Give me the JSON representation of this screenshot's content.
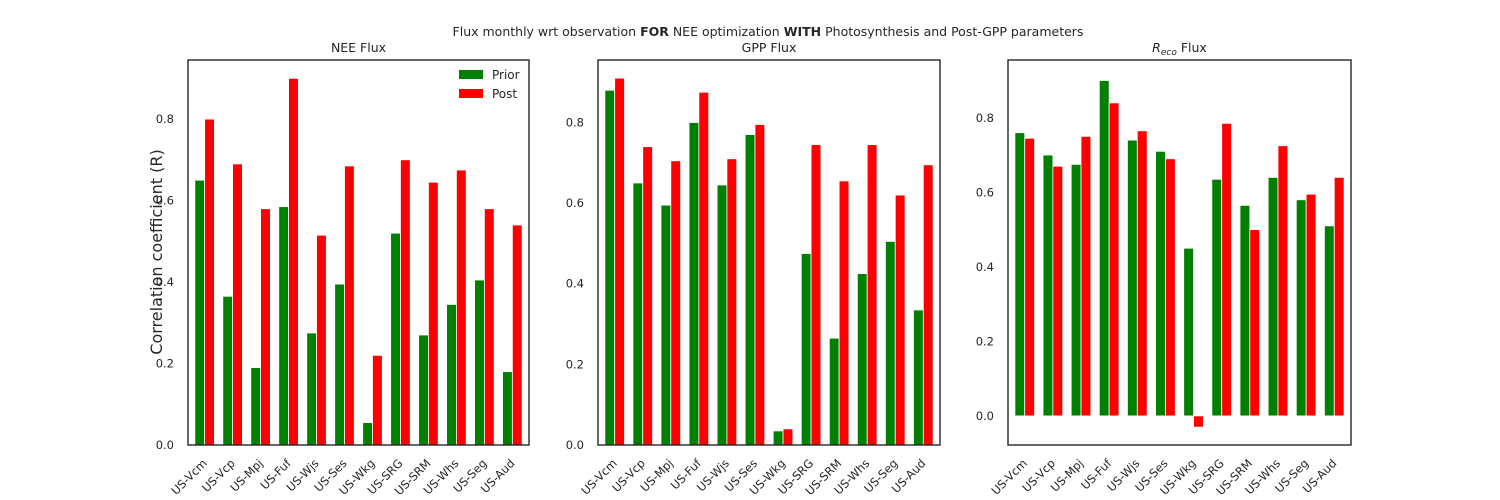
{
  "figure": {
    "title_parts": [
      {
        "text": "Flux monthly wrt observation ",
        "bold": false
      },
      {
        "text": "FOR",
        "bold": true
      },
      {
        "text": " NEE optimization ",
        "bold": false
      },
      {
        "text": "WITH",
        "bold": true
      },
      {
        "text": " Photosynthesis and Post-GPP parameters",
        "bold": false
      }
    ],
    "ylabel": "Correlation coefficient (R)"
  },
  "colors": {
    "prior": "#008000",
    "post": "#ff0000"
  },
  "chart_data": [
    {
      "type": "bar",
      "title": "NEE Flux",
      "categories": [
        "US-Vcm",
        "US-Vcp",
        "US-Mpj",
        "US-Fuf",
        "US-Wjs",
        "US-Ses",
        "US-Wkg",
        "US-SRG",
        "US-SRM",
        "US-Whs",
        "US-Seg",
        "US-Aud"
      ],
      "series": [
        {
          "name": "Prior",
          "values": [
            0.65,
            0.365,
            0.19,
            0.585,
            0.275,
            0.395,
            0.055,
            0.52,
            0.27,
            0.345,
            0.405,
            0.18
          ]
        },
        {
          "name": "Post",
          "values": [
            0.8,
            0.69,
            0.58,
            0.9,
            0.515,
            0.685,
            0.22,
            0.7,
            0.645,
            0.675,
            0.58,
            0.54
          ]
        }
      ],
      "ylim": [
        0.0,
        0.945
      ],
      "yticks": [
        0.0,
        0.2,
        0.4,
        0.6,
        0.8
      ],
      "ytick_labels": [
        "0.0",
        "0.2",
        "0.4",
        "0.6",
        "0.8"
      ],
      "legend": "top-right",
      "grid": false
    },
    {
      "type": "bar",
      "title": "GPP Flux",
      "categories": [
        "US-Vcm",
        "US-Vcp",
        "US-Mpj",
        "US-Fuf",
        "US-Wjs",
        "US-Ses",
        "US-Wkg",
        "US-SRG",
        "US-SRM",
        "US-Whs",
        "US-Seg",
        "US-Aud"
      ],
      "series": [
        {
          "name": "Prior",
          "values": [
            0.88,
            0.65,
            0.595,
            0.8,
            0.645,
            0.77,
            0.035,
            0.475,
            0.265,
            0.425,
            0.505,
            0.335
          ]
        },
        {
          "name": "Post",
          "values": [
            0.91,
            0.74,
            0.705,
            0.875,
            0.71,
            0.795,
            0.04,
            0.745,
            0.655,
            0.745,
            0.62,
            0.695
          ]
        }
      ],
      "ylim": [
        0.0,
        0.955
      ],
      "yticks": [
        0.0,
        0.2,
        0.4,
        0.6,
        0.8
      ],
      "ytick_labels": [
        "0.0",
        "0.2",
        "0.4",
        "0.6",
        "0.8"
      ],
      "grid": false
    },
    {
      "type": "bar",
      "title_main": "R",
      "title_sub": "eco",
      "title_suffix": " Flux",
      "categories": [
        "US-Vcm",
        "US-Vcp",
        "US-Mpj",
        "US-Fuf",
        "US-Wjs",
        "US-Ses",
        "US-Wkg",
        "US-SRG",
        "US-SRM",
        "US-Whs",
        "US-Seg",
        "US-Aud"
      ],
      "series": [
        {
          "name": "Prior",
          "values": [
            0.76,
            0.7,
            0.675,
            0.9,
            0.74,
            0.71,
            0.45,
            0.635,
            0.565,
            0.64,
            0.58,
            0.51
          ]
        },
        {
          "name": "Post",
          "values": [
            0.745,
            0.67,
            0.75,
            0.84,
            0.765,
            0.69,
            -0.03,
            0.785,
            0.5,
            0.725,
            0.595,
            0.64
          ]
        }
      ],
      "ylim": [
        -0.078,
        0.955
      ],
      "yticks": [
        0.0,
        0.2,
        0.4,
        0.6,
        0.8
      ],
      "ytick_labels": [
        "0.0",
        "0.2",
        "0.4",
        "0.6",
        "0.8"
      ],
      "grid": false
    }
  ]
}
